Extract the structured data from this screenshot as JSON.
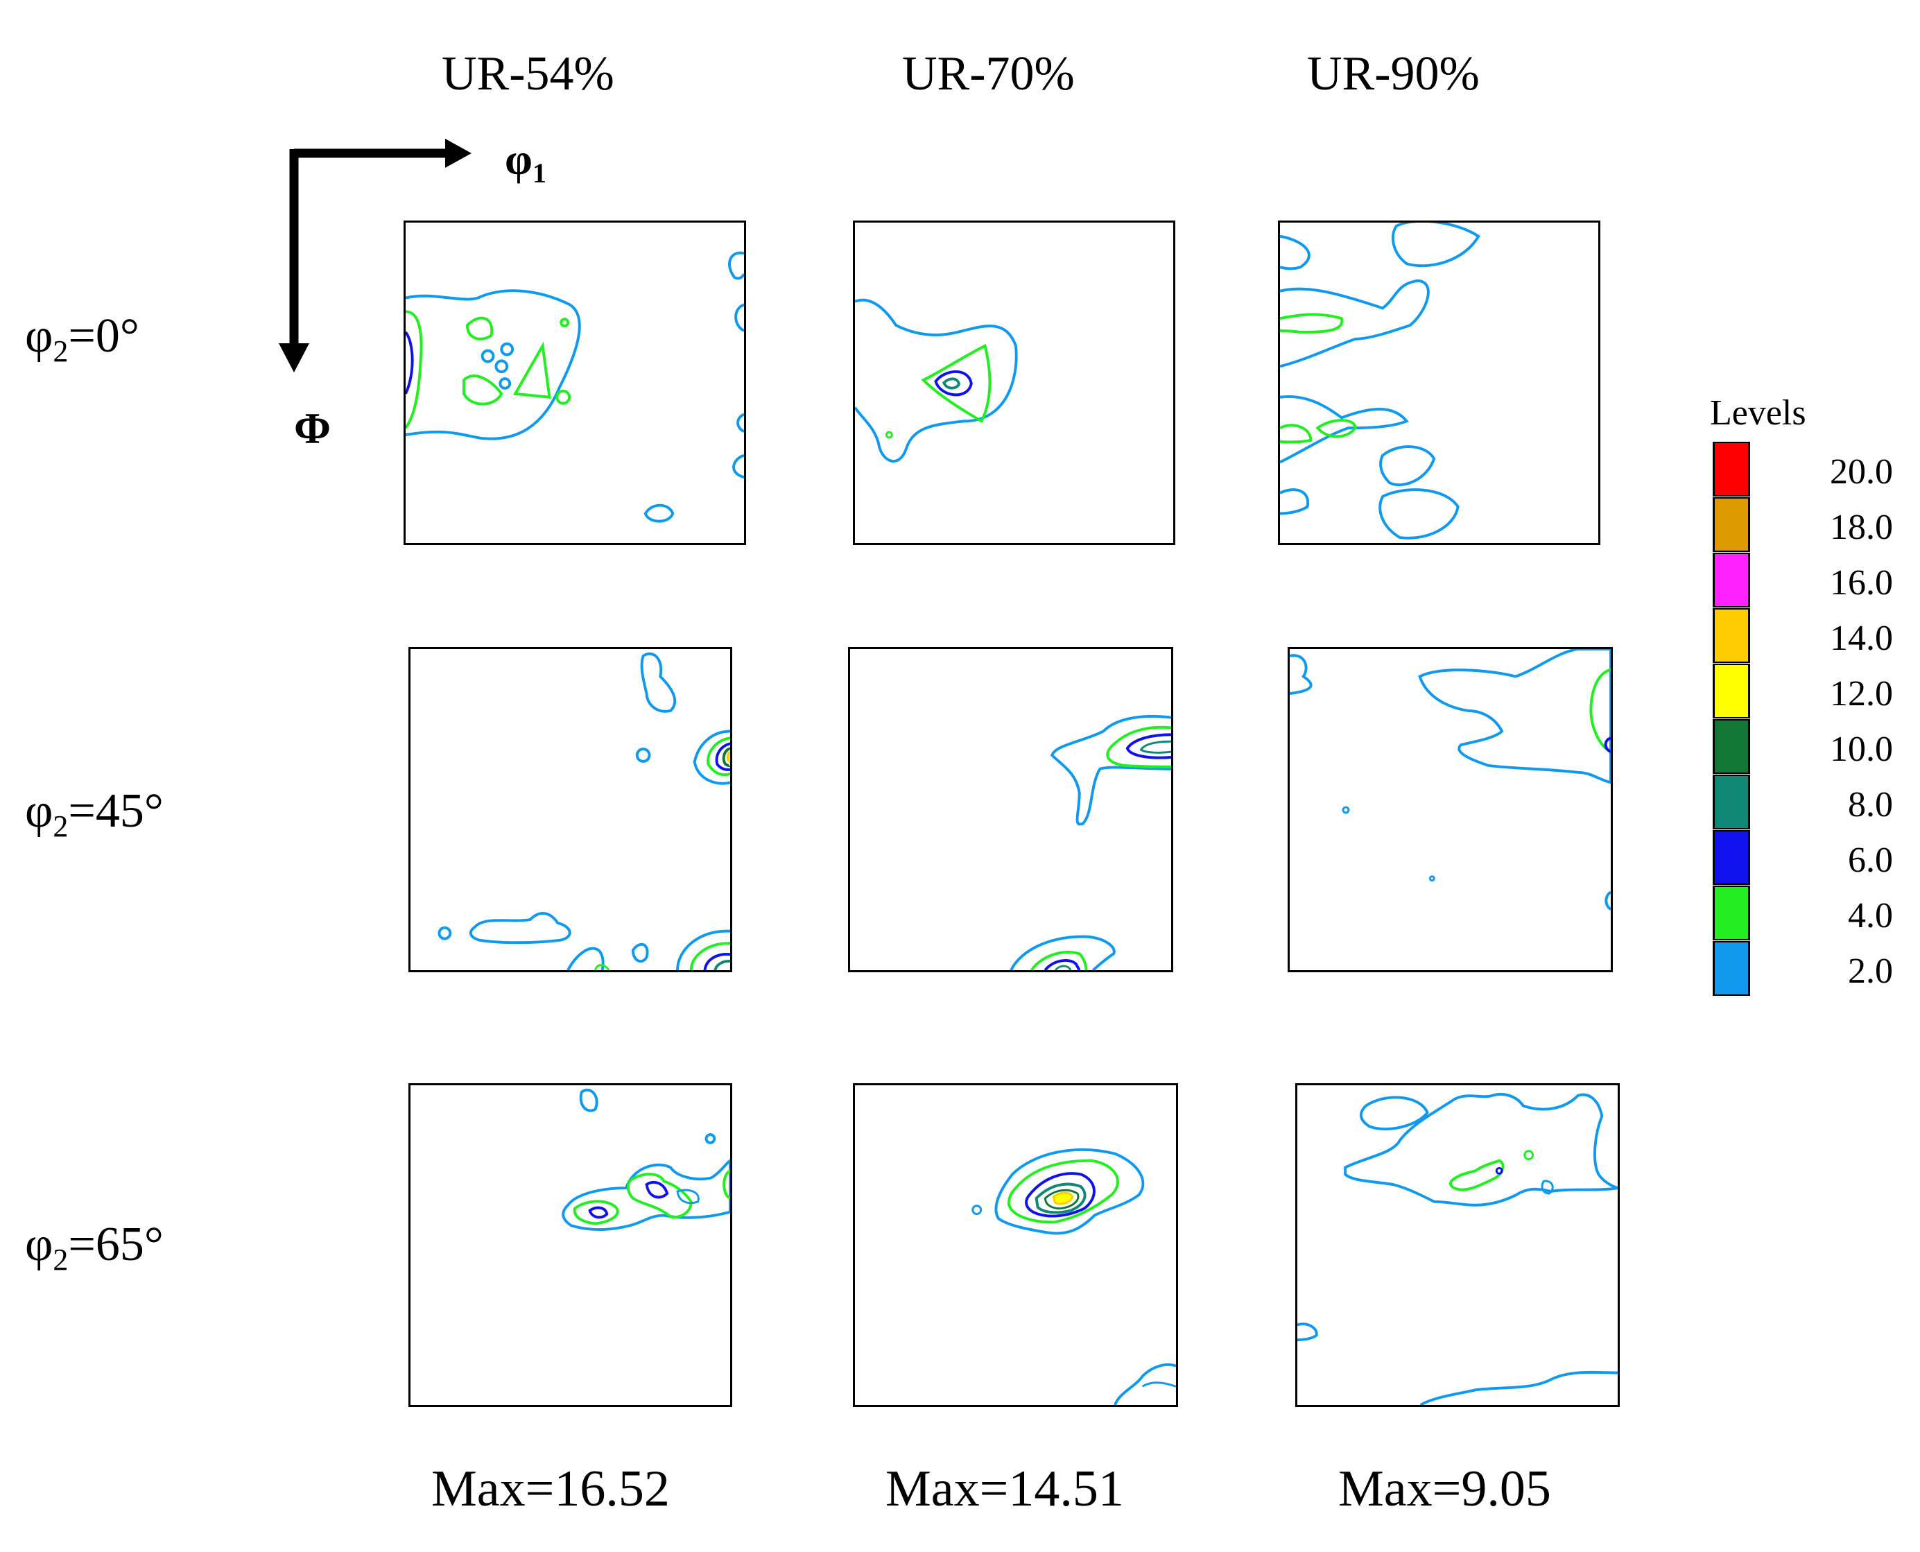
{
  "chart_data": {
    "type": "contour-grid",
    "columns": [
      "UR-54%",
      "UR-70%",
      "UR-90%"
    ],
    "rows": [
      "φ2=0°",
      "φ2=45°",
      "φ2=65°"
    ],
    "row_labels": [
      {
        "sym": "φ",
        "sub": "2",
        "rest": "=0°"
      },
      {
        "sym": "φ",
        "sub": "2",
        "rest": "=45°"
      },
      {
        "sym": "φ",
        "sub": "2",
        "rest": "=65°"
      }
    ],
    "max_values": [
      "Max=16.52",
      "Max=14.51",
      "Max=9.05"
    ],
    "axes": {
      "horizontal": {
        "sym": "φ",
        "sub": "1"
      },
      "vertical": {
        "sym": "Φ"
      }
    },
    "legend": {
      "title": "Levels",
      "placement": "right",
      "levels": [
        {
          "label": "20.0",
          "color": "#ff0000"
        },
        {
          "label": "18.0",
          "color": "#dd9900"
        },
        {
          "label": "16.0",
          "color": "#ff22ff"
        },
        {
          "label": "14.0",
          "color": "#ffcc00"
        },
        {
          "label": "12.0",
          "color": "#ffff00"
        },
        {
          "label": "10.0",
          "color": "#117733"
        },
        {
          "label": "8.0",
          "color": "#118877"
        },
        {
          "label": "6.0",
          "color": "#1111ee"
        },
        {
          "label": "4.0",
          "color": "#22ee22"
        },
        {
          "label": "2.0",
          "color": "#1199ee"
        }
      ]
    }
  }
}
